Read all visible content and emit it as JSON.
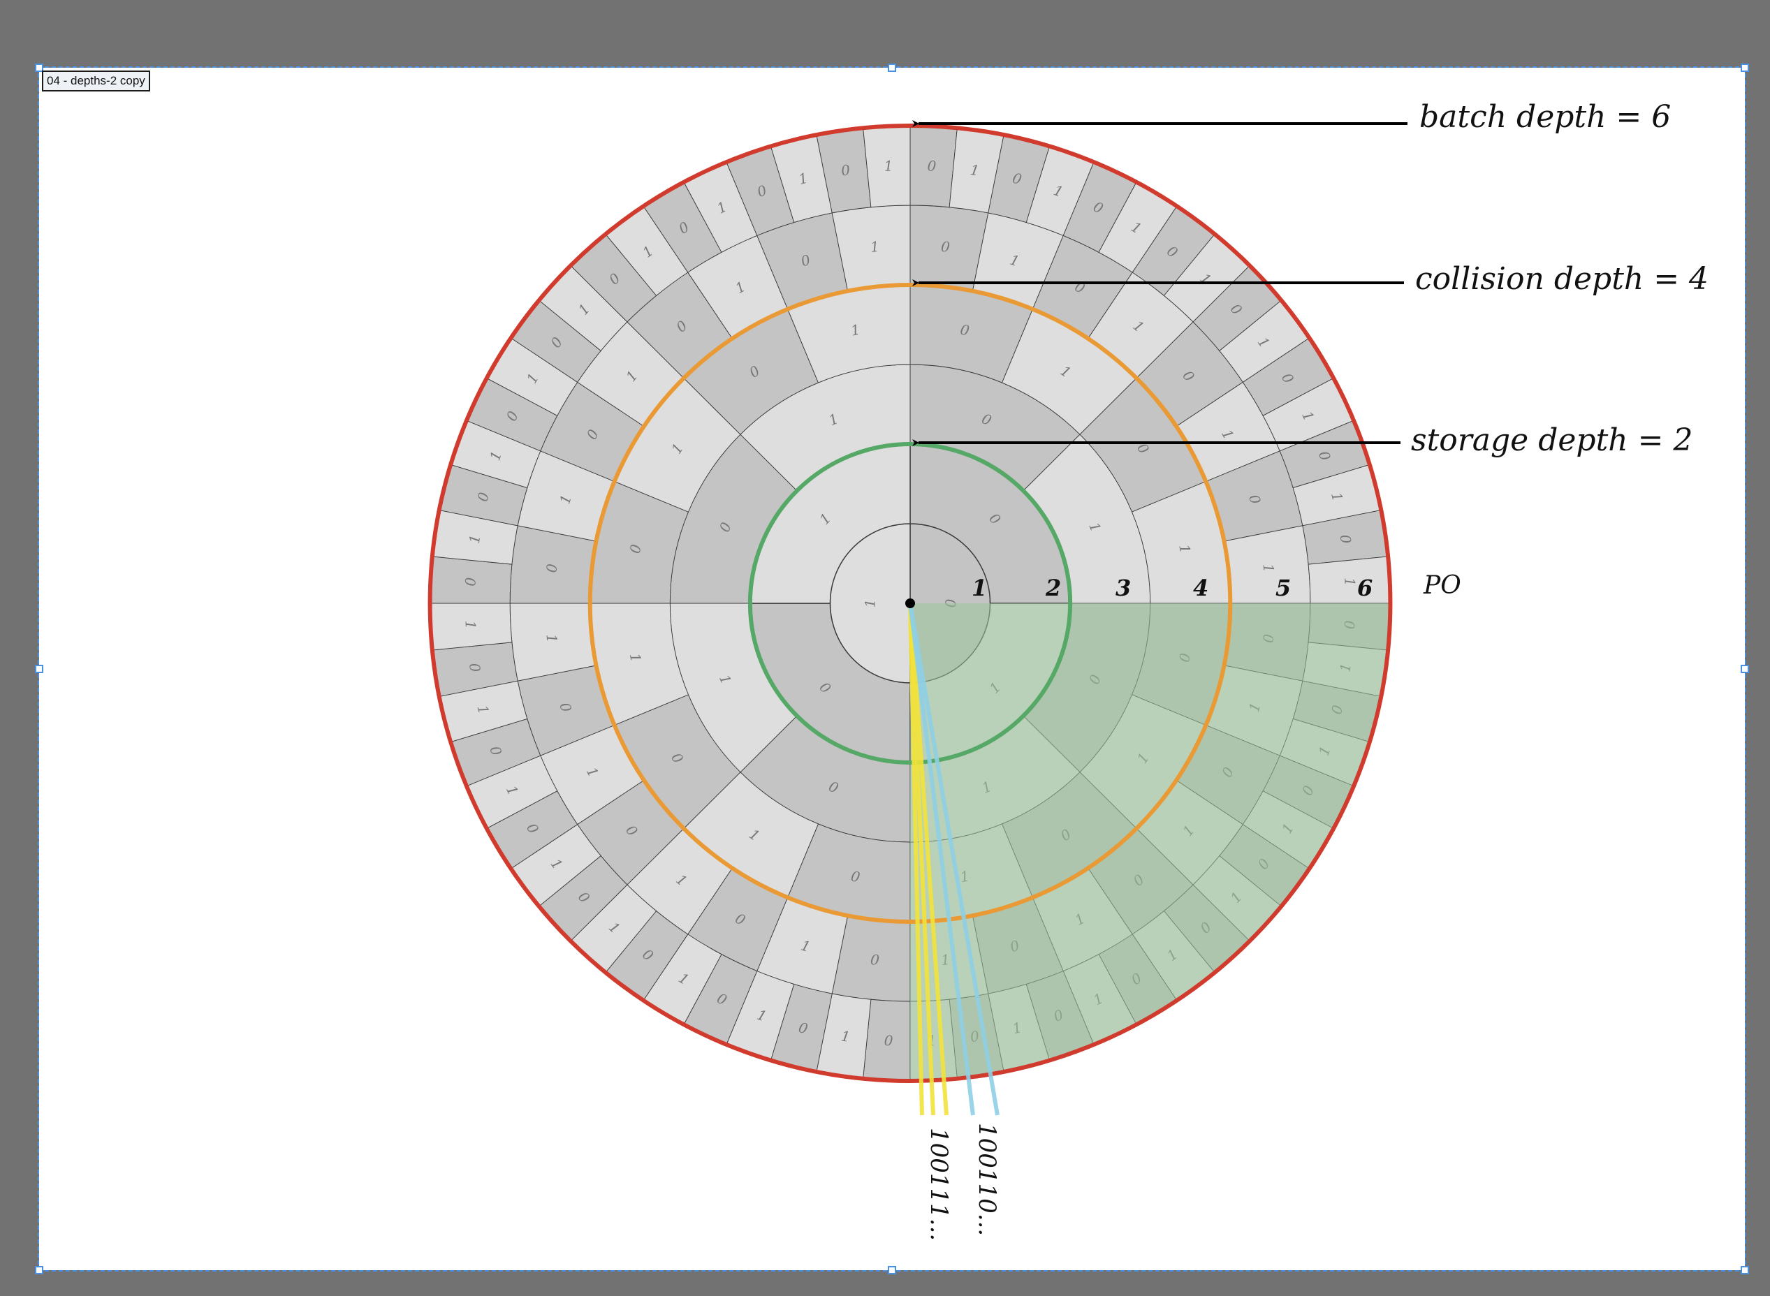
{
  "artboard": {
    "name": "04 - depths-2 copy"
  },
  "annotations": {
    "batch_depth": "batch depth = 6",
    "collision_depth": "collision depth = 4",
    "storage_depth": "storage depth = 2",
    "po_axis": "PO"
  },
  "po_labels": [
    "1",
    "2",
    "3",
    "4",
    "5",
    "6"
  ],
  "address_labels": [
    "100111...",
    "100110..."
  ],
  "tree": {
    "levels": 6,
    "branching": 2,
    "ring_colors": {
      "batch": "#d13b2e",
      "collision": "#ea9a35",
      "storage": "#55a865"
    },
    "highlight_color": "#9bc59a",
    "address_line_colors": [
      "#f2e23a",
      "#8ecfe6"
    ]
  }
}
